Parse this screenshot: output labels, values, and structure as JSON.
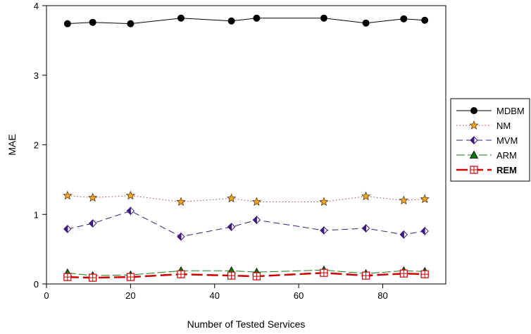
{
  "chart_data": {
    "type": "line",
    "xlabel": "Number of Tested Services",
    "ylabel": "MAE",
    "xlim": [
      0,
      95
    ],
    "ylim": [
      0,
      4
    ],
    "xticks": [
      0,
      20,
      40,
      60,
      80
    ],
    "yticks": [
      0,
      1,
      2,
      3,
      4
    ],
    "grid": false,
    "legend_position": "right",
    "x": [
      5,
      11,
      20,
      32,
      44,
      50,
      66,
      76,
      85,
      90
    ],
    "series": [
      {
        "name": "MDBM",
        "values": [
          3.74,
          3.76,
          3.74,
          3.82,
          3.78,
          3.82,
          3.82,
          3.75,
          3.81,
          3.79
        ],
        "color": "#000000",
        "dash": "solid",
        "marker": "circle",
        "bold": false
      },
      {
        "name": "NM",
        "values": [
          1.27,
          1.24,
          1.27,
          1.18,
          1.23,
          1.18,
          1.18,
          1.26,
          1.2,
          1.22
        ],
        "color": "#a04a3a",
        "dash": "dotted",
        "marker": "star",
        "bold": false
      },
      {
        "name": "MVM",
        "values": [
          0.79,
          0.87,
          1.05,
          0.68,
          0.82,
          0.92,
          0.77,
          0.8,
          0.71,
          0.76
        ],
        "color": "#3a1a7a",
        "dash": "longdash",
        "marker": "diamond",
        "bold": false
      },
      {
        "name": "ARM",
        "values": [
          0.16,
          0.12,
          0.13,
          0.19,
          0.19,
          0.17,
          0.2,
          0.15,
          0.19,
          0.18
        ],
        "color": "#1a7a1a",
        "dash": "dash",
        "marker": "triangle",
        "bold": false
      },
      {
        "name": "REM",
        "values": [
          0.1,
          0.09,
          0.1,
          0.14,
          0.12,
          0.11,
          0.16,
          0.12,
          0.15,
          0.14
        ],
        "color": "#cc0000",
        "dash": "heavydash",
        "marker": "squareplus",
        "bold": true
      }
    ]
  }
}
